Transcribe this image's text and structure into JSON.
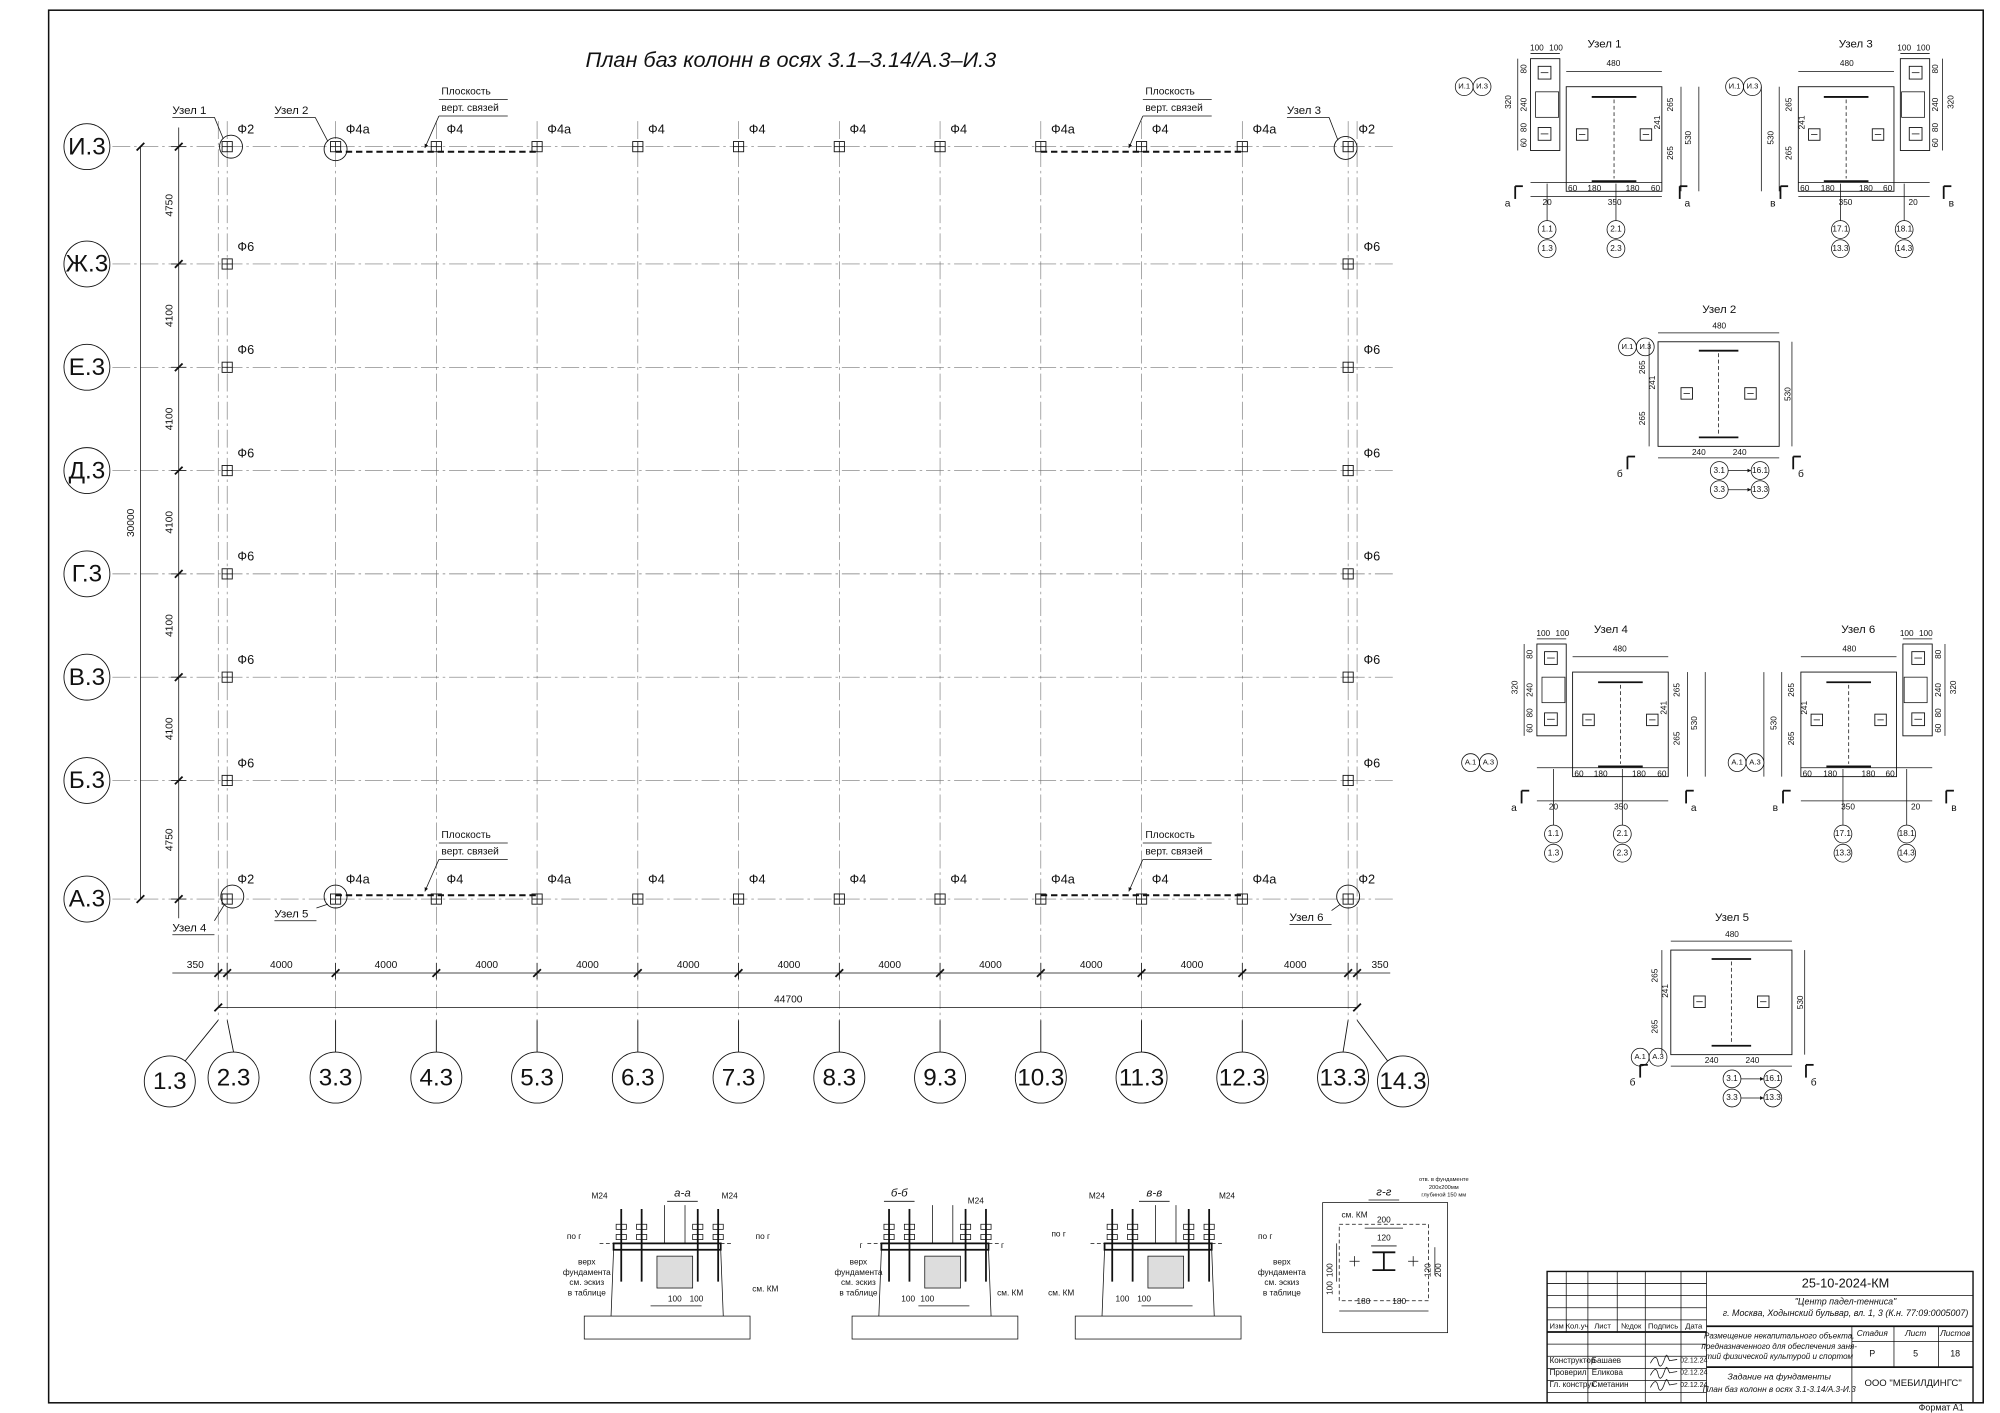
{
  "title": "План баз колонн в осях 3.1–3.14/А.3–И.3",
  "plan": {
    "rows": [
      "И.3",
      "Ж.3",
      "Е.3",
      "Д.3",
      "Г.3",
      "В.3",
      "Б.3",
      "А.3"
    ],
    "columns": [
      "1.3",
      "2.3",
      "3.3",
      "4.3",
      "5.3",
      "6.3",
      "7.3",
      "8.3",
      "9.3",
      "10.3",
      "11.3",
      "12.3",
      "13.3",
      "14.3"
    ],
    "row_dims": [
      "4750",
      "4100",
      "4100",
      "4100",
      "4100",
      "4100",
      "4750"
    ],
    "row_total": "30000",
    "column_dims": [
      "350",
      "4000",
      "4000",
      "4000",
      "4000",
      "4000",
      "4000",
      "4000",
      "4000",
      "4000",
      "4000",
      "4000",
      "350"
    ],
    "column_total": "44700",
    "top_marks": [
      "Ф2",
      "Ф4а",
      "Ф4",
      "Ф4а",
      "Ф4",
      "Ф4",
      "Ф4",
      "Ф4",
      "Ф4а",
      "Ф4",
      "Ф4а",
      "Ф2"
    ],
    "bottom_marks": [
      "Ф2",
      "Ф4а",
      "Ф4",
      "Ф4а",
      "Ф4",
      "Ф4",
      "Ф4",
      "Ф4",
      "Ф4а",
      "Ф4",
      "Ф4а",
      "Ф2"
    ],
    "left_marks": [
      "Ф6",
      "Ф6",
      "Ф6",
      "Ф6",
      "Ф6",
      "Ф6"
    ],
    "right_marks": [
      "Ф6",
      "Ф6",
      "Ф6",
      "Ф6",
      "Ф6",
      "Ф6"
    ],
    "nodes": [
      "Узел 1",
      "Узел 2",
      "Узел 3",
      "Узел 4",
      "Узел 5",
      "Узел 6"
    ],
    "bracing": [
      [
        "Плоскость",
        "верт. связей"
      ],
      [
        "Плоскость",
        "верт. связей"
      ],
      [
        "Плоскость",
        "верт. связей"
      ],
      [
        "Плоскость",
        "верт. связей"
      ]
    ]
  },
  "details": [
    {
      "title": "Узел 1",
      "axes": [
        "И.1",
        "И.3"
      ],
      "dims": [
        "100",
        "100",
        "480",
        "80",
        "320",
        "240",
        "80",
        "60",
        "265",
        "241",
        "265",
        "530",
        "60",
        "180",
        "180",
        "60",
        "20",
        "350"
      ],
      "sections": [
        "а",
        "а"
      ],
      "refs": [
        "1.1",
        "1.3",
        "2.1",
        "2.3"
      ]
    },
    {
      "title": "Узел 2",
      "axes": [
        "И.1",
        "И.3"
      ],
      "dims": [
        "480",
        "265",
        "241",
        "265",
        "530",
        "240",
        "240"
      ],
      "sections": [
        "б",
        "б"
      ],
      "refs": [
        "3.1",
        "16.1",
        "3.3",
        "13.3"
      ]
    },
    {
      "title": "Узел 3",
      "axes": [
        "И.1",
        "И.3"
      ],
      "dims": [
        "100",
        "100",
        "480",
        "80",
        "320",
        "240",
        "80",
        "60",
        "265",
        "241",
        "265",
        "530",
        "60",
        "180",
        "180",
        "60",
        "20",
        "350"
      ],
      "sections": [
        "в",
        "в"
      ],
      "refs": [
        "17.1",
        "13.3",
        "18.1",
        "14.3"
      ]
    },
    {
      "title": "Узел 4",
      "axes": [
        "А.1",
        "А.3"
      ],
      "dims": [
        "100",
        "100",
        "480",
        "80",
        "320",
        "240",
        "80",
        "60",
        "265",
        "241",
        "265",
        "530",
        "60",
        "180",
        "180",
        "60",
        "20",
        "350"
      ],
      "sections": [
        "а",
        "а"
      ],
      "refs": [
        "1.1",
        "1.3",
        "2.1",
        "2.3"
      ]
    },
    {
      "title": "Узел 5",
      "axes": [
        "А.1",
        "А.3"
      ],
      "dims": [
        "480",
        "265",
        "241",
        "265",
        "530",
        "240",
        "240"
      ],
      "sections": [
        "б",
        "б"
      ],
      "refs": [
        "3.1",
        "16.1",
        "3.3",
        "13.3"
      ]
    },
    {
      "title": "Узел 6",
      "axes": [
        "А.1",
        "А.3"
      ],
      "dims": [
        "100",
        "100",
        "480",
        "80",
        "320",
        "240",
        "80",
        "60",
        "265",
        "241",
        "265",
        "530",
        "60",
        "180",
        "180",
        "60",
        "20",
        "350"
      ],
      "sections": [
        "в",
        "в"
      ],
      "refs": [
        "17.1",
        "13.3",
        "18.1",
        "14.3"
      ]
    }
  ],
  "sections": [
    {
      "title": "а-а",
      "labels": [
        "М24",
        "М24",
        "по г",
        "по г",
        "верх",
        "фундамента",
        "см. эскиз",
        "в таблице",
        "см. КМ",
        "100",
        "100"
      ]
    },
    {
      "title": "б-б",
      "labels": [
        "М24",
        "г",
        "г",
        "верх",
        "фундамента",
        "см. эскиз",
        "в таблице",
        "см. КМ",
        "100",
        "100"
      ]
    },
    {
      "title": "в-в",
      "labels": [
        "М24",
        "М24",
        "по г",
        "по г",
        "верх",
        "фундамента",
        "см. эскиз",
        "в таблице",
        "см. КМ",
        "100",
        "100"
      ]
    },
    {
      "title": "г-г",
      "labels": [
        "см. КМ",
        "отв. в фундаменте",
        "200х200мм",
        "глубиной 150 мм",
        "200",
        "120",
        "180",
        "180",
        "100",
        "100",
        "120",
        "200"
      ]
    }
  ],
  "title_block": {
    "code": "25-10-2024-КМ",
    "object": "\"Центр падел-тенниса\"",
    "address": "г. Москва, Ходынский бульвар, вл. 1, 3 (К.н. 77:09:0005007)",
    "description": [
      "Размещение некапитального объекта,",
      "предназначенного для обеспечения заня-",
      "тий физической культурой и спортом"
    ],
    "headers": [
      "Изм",
      "Кол.уч",
      "Лист",
      "№док",
      "Подпись",
      "Дата"
    ],
    "signatures": [
      {
        "role": "Конструктор",
        "name": "Башаев",
        "date": "02.12.24"
      },
      {
        "role": "Проверил",
        "name": "Еликова",
        "date": "02.12.24"
      },
      {
        "role": "Гл. конструк",
        "name": "Сметанин",
        "date": "02.12.24"
      }
    ],
    "stage_headers": [
      "Стадия",
      "Лист",
      "Листов"
    ],
    "stage_values": [
      "Р",
      "5",
      "18"
    ],
    "sheet_title": [
      "Задание на фундаменты",
      "План баз колонн в осях 3.1-3.14/А.3-И.3"
    ],
    "company": "ООО \"МЕБИЛДИНГС\""
  },
  "format": "Формат А1"
}
